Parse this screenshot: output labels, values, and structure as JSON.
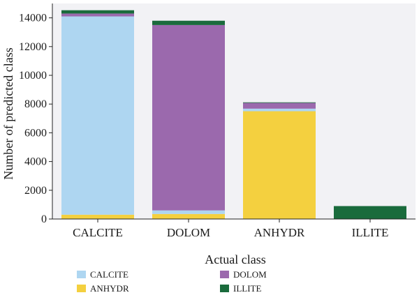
{
  "chart_data": {
    "type": "bar",
    "stacked": true,
    "xlabel": "Actual class",
    "ylabel": "Number of predicted class",
    "categories": [
      "CALCITE",
      "DOLOM",
      "ANHYDR",
      "ILLITE"
    ],
    "ylim": [
      0,
      15000
    ],
    "yticks": [
      0,
      2000,
      4000,
      6000,
      8000,
      10000,
      12000,
      14000
    ],
    "grid": false,
    "legend_position": "bottom",
    "series": [
      {
        "name": "ANHYDR",
        "color": "#f4d03f",
        "values": [
          300,
          350,
          7500,
          0
        ]
      },
      {
        "name": "CALCITE",
        "color": "#aed6f1",
        "values": [
          13800,
          250,
          180,
          0
        ]
      },
      {
        "name": "DOLOM",
        "color": "#9b69ad",
        "values": [
          200,
          12900,
          400,
          0
        ]
      },
      {
        "name": "ILLITE",
        "color": "#1a6b3c",
        "values": [
          230,
          300,
          40,
          900
        ]
      }
    ],
    "legend_order": [
      "CALCITE",
      "ANHYDR",
      "DOLOM",
      "ILLITE"
    ],
    "plot_background": "#f2f2f5"
  }
}
